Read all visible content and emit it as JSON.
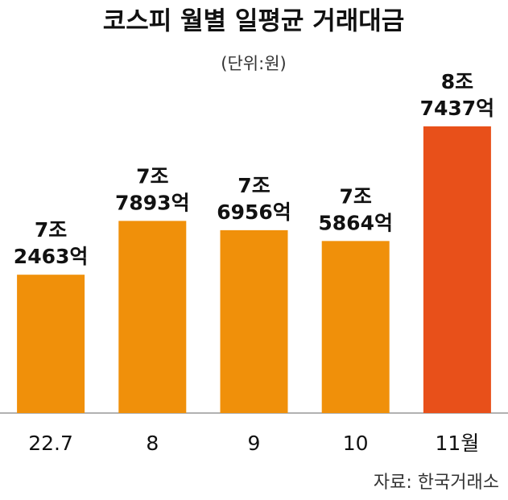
{
  "chart_data": {
    "type": "bar",
    "title": "코스피 월별 일평균 거래대금",
    "subtitle": "(단위:원)",
    "source": "자료: 한국거래소",
    "categories": [
      "22.7",
      "8",
      "9",
      "10",
      "11월"
    ],
    "values": [
      72463,
      77893,
      76956,
      75864,
      87437
    ],
    "value_labels": [
      "7조 2463억",
      "7조 7893억",
      "7조 6956억",
      "7조 5864억",
      "8조 7437억"
    ],
    "colors": [
      "#f0900a",
      "#f0900a",
      "#f0900a",
      "#f0900a",
      "#e8501a"
    ],
    "ylim": [
      58500,
      88000
    ]
  }
}
